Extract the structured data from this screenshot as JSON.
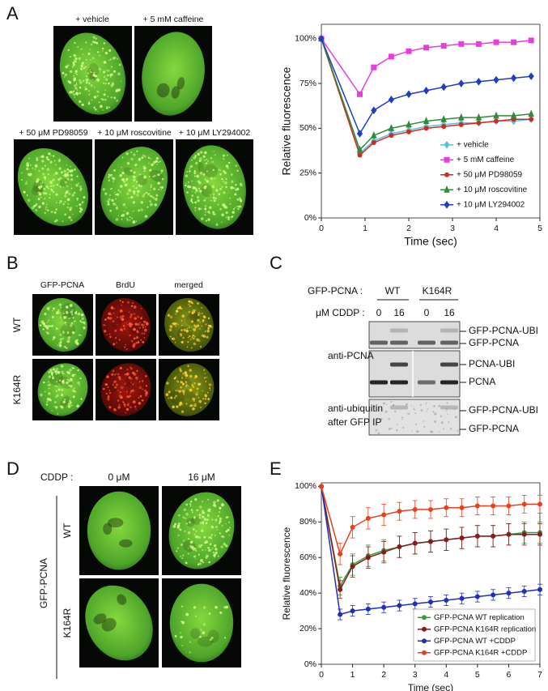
{
  "figure": {
    "panel_labels": [
      "A",
      "B",
      "C",
      "D",
      "E"
    ],
    "a": {
      "image_labels": [
        "+ vehicle",
        "+ 5 mM caffeine",
        "+ 50 μM PD98059",
        "+ 10 μM roscovitine",
        "+ 10 μM LY294002"
      ]
    },
    "b": {
      "columns": [
        "GFP-PCNA",
        "BrdU",
        "merged"
      ],
      "rows": [
        "WT",
        "K164R"
      ]
    },
    "c": {
      "construct_label": "GFP-PCNA :",
      "constructs": [
        "WT",
        "K164R"
      ],
      "dose_label": "μM CDDP :",
      "doses": [
        0,
        16,
        0,
        16
      ],
      "antibodies": [
        "anti-PCNA",
        "anti-ubiquitin",
        "after GFP IP"
      ],
      "bands": [
        "GFP-PCNA-UBI",
        "GFP-PCNA",
        "PCNA-UBI",
        "PCNA",
        "GFP-PCNA-UBI",
        "GFP-PCNA"
      ]
    },
    "d": {
      "treatment_label": "CDDP :",
      "doses": [
        "0 μM",
        "16 μM"
      ],
      "construct": "GFP-PCNA",
      "rows": [
        "WT",
        "K164R"
      ]
    }
  },
  "chart_data": [
    {
      "type": "line",
      "xlabel": "Time (sec)",
      "ylabel": "Relative fluorescence",
      "x": [
        0,
        0.88,
        1.2,
        1.6,
        2.0,
        2.4,
        2.8,
        3.2,
        3.6,
        4.0,
        4.4,
        4.8
      ],
      "xlim": [
        0,
        5
      ],
      "xticks": [
        0,
        1,
        2,
        3,
        4,
        5
      ],
      "ylim": [
        0,
        108
      ],
      "yticks": [
        {
          "value": 0,
          "label": "0%"
        },
        {
          "value": 25,
          "label": "25%"
        },
        {
          "value": 50,
          "label": "50%"
        },
        {
          "value": 75,
          "label": "75%"
        },
        {
          "value": 100,
          "label": "100%"
        }
      ],
      "legend": "lower right",
      "series": [
        {
          "name": "+ vehicle",
          "color": "#5bbfe8",
          "marker": "diamond",
          "values": [
            100,
            36,
            43,
            47,
            49,
            51,
            52,
            53,
            53,
            54,
            54,
            55
          ]
        },
        {
          "name": "+ 5 mM caffeine",
          "color": "#e83ee0",
          "marker": "square",
          "values": [
            100,
            69,
            84,
            90,
            93,
            95,
            96,
            97,
            97,
            98,
            98,
            99
          ]
        },
        {
          "name": "+ 50 μM PD98059",
          "color": "#d22a1e",
          "marker": "circle",
          "values": [
            100,
            35,
            42,
            46,
            48,
            50,
            51,
            52,
            53,
            54,
            55,
            55
          ]
        },
        {
          "name": "+ 10 μM roscovitine",
          "color": "#2e8b3a",
          "marker": "triangle",
          "values": [
            100,
            38,
            46,
            50,
            52,
            54,
            55,
            56,
            56,
            57,
            57,
            58
          ]
        },
        {
          "name": "+ 10 μM LY294002",
          "color": "#1f3fbf",
          "marker": "diamond",
          "values": [
            100,
            47,
            60,
            66,
            69,
            71,
            73,
            75,
            76,
            77,
            78,
            79
          ]
        }
      ]
    },
    {
      "type": "line",
      "xlabel": "Time (sec)",
      "ylabel": "Relative fluorescence",
      "x": [
        0,
        0.6,
        1,
        1.5,
        2,
        2.5,
        3,
        3.5,
        4,
        4.5,
        5,
        5.5,
        6,
        6.5,
        7
      ],
      "xlim": [
        0,
        7
      ],
      "xticks": [
        0,
        1,
        2,
        3,
        4,
        5,
        6,
        7
      ],
      "ylim": [
        0,
        102
      ],
      "yticks": [
        {
          "value": 0,
          "label": "0%"
        },
        {
          "value": 20,
          "label": "20%"
        },
        {
          "value": 40,
          "label": "40%"
        },
        {
          "value": 60,
          "label": "60%"
        },
        {
          "value": 80,
          "label": "80%"
        },
        {
          "value": 100,
          "label": "100%"
        }
      ],
      "legend": "lower right",
      "series": [
        {
          "name": "GFP-PCNA WT replication",
          "color": "#3a9a3a",
          "marker": "circle",
          "values": [
            100,
            44,
            56,
            61,
            64,
            66,
            68,
            69,
            70,
            71,
            72,
            72,
            73,
            74,
            74
          ],
          "errors": [
            0,
            5,
            6,
            6,
            6,
            6,
            6,
            6,
            6,
            6,
            6,
            6,
            6,
            6,
            6
          ]
        },
        {
          "name": "GFP-PCNA K164R replication",
          "color": "#8b1a1a",
          "marker": "circle",
          "values": [
            100,
            42,
            55,
            60,
            63,
            66,
            68,
            69,
            70,
            71,
            72,
            72,
            73,
            73,
            73
          ],
          "errors": [
            0,
            5,
            6,
            6,
            6,
            6,
            6,
            6,
            6,
            6,
            6,
            6,
            6,
            6,
            6
          ]
        },
        {
          "name": "GFP-PCNA WT +CDDP",
          "color": "#1f2fbf",
          "marker": "circle",
          "values": [
            100,
            28,
            30,
            31,
            32,
            33,
            34,
            35,
            36,
            37,
            38,
            39,
            40,
            41,
            42
          ],
          "errors": [
            0,
            3,
            3,
            3,
            3,
            3,
            3,
            3,
            3,
            3,
            3,
            3,
            3,
            3,
            3
          ]
        },
        {
          "name": "GFP-PCNA K164R +CDDP",
          "color": "#e8401c",
          "marker": "circle",
          "values": [
            100,
            62,
            77,
            82,
            84,
            86,
            87,
            87,
            88,
            88,
            89,
            89,
            89,
            90,
            90
          ],
          "errors": [
            0,
            6,
            6,
            6,
            6,
            5,
            5,
            5,
            5,
            5,
            5,
            5,
            5,
            5,
            5
          ]
        }
      ]
    }
  ]
}
